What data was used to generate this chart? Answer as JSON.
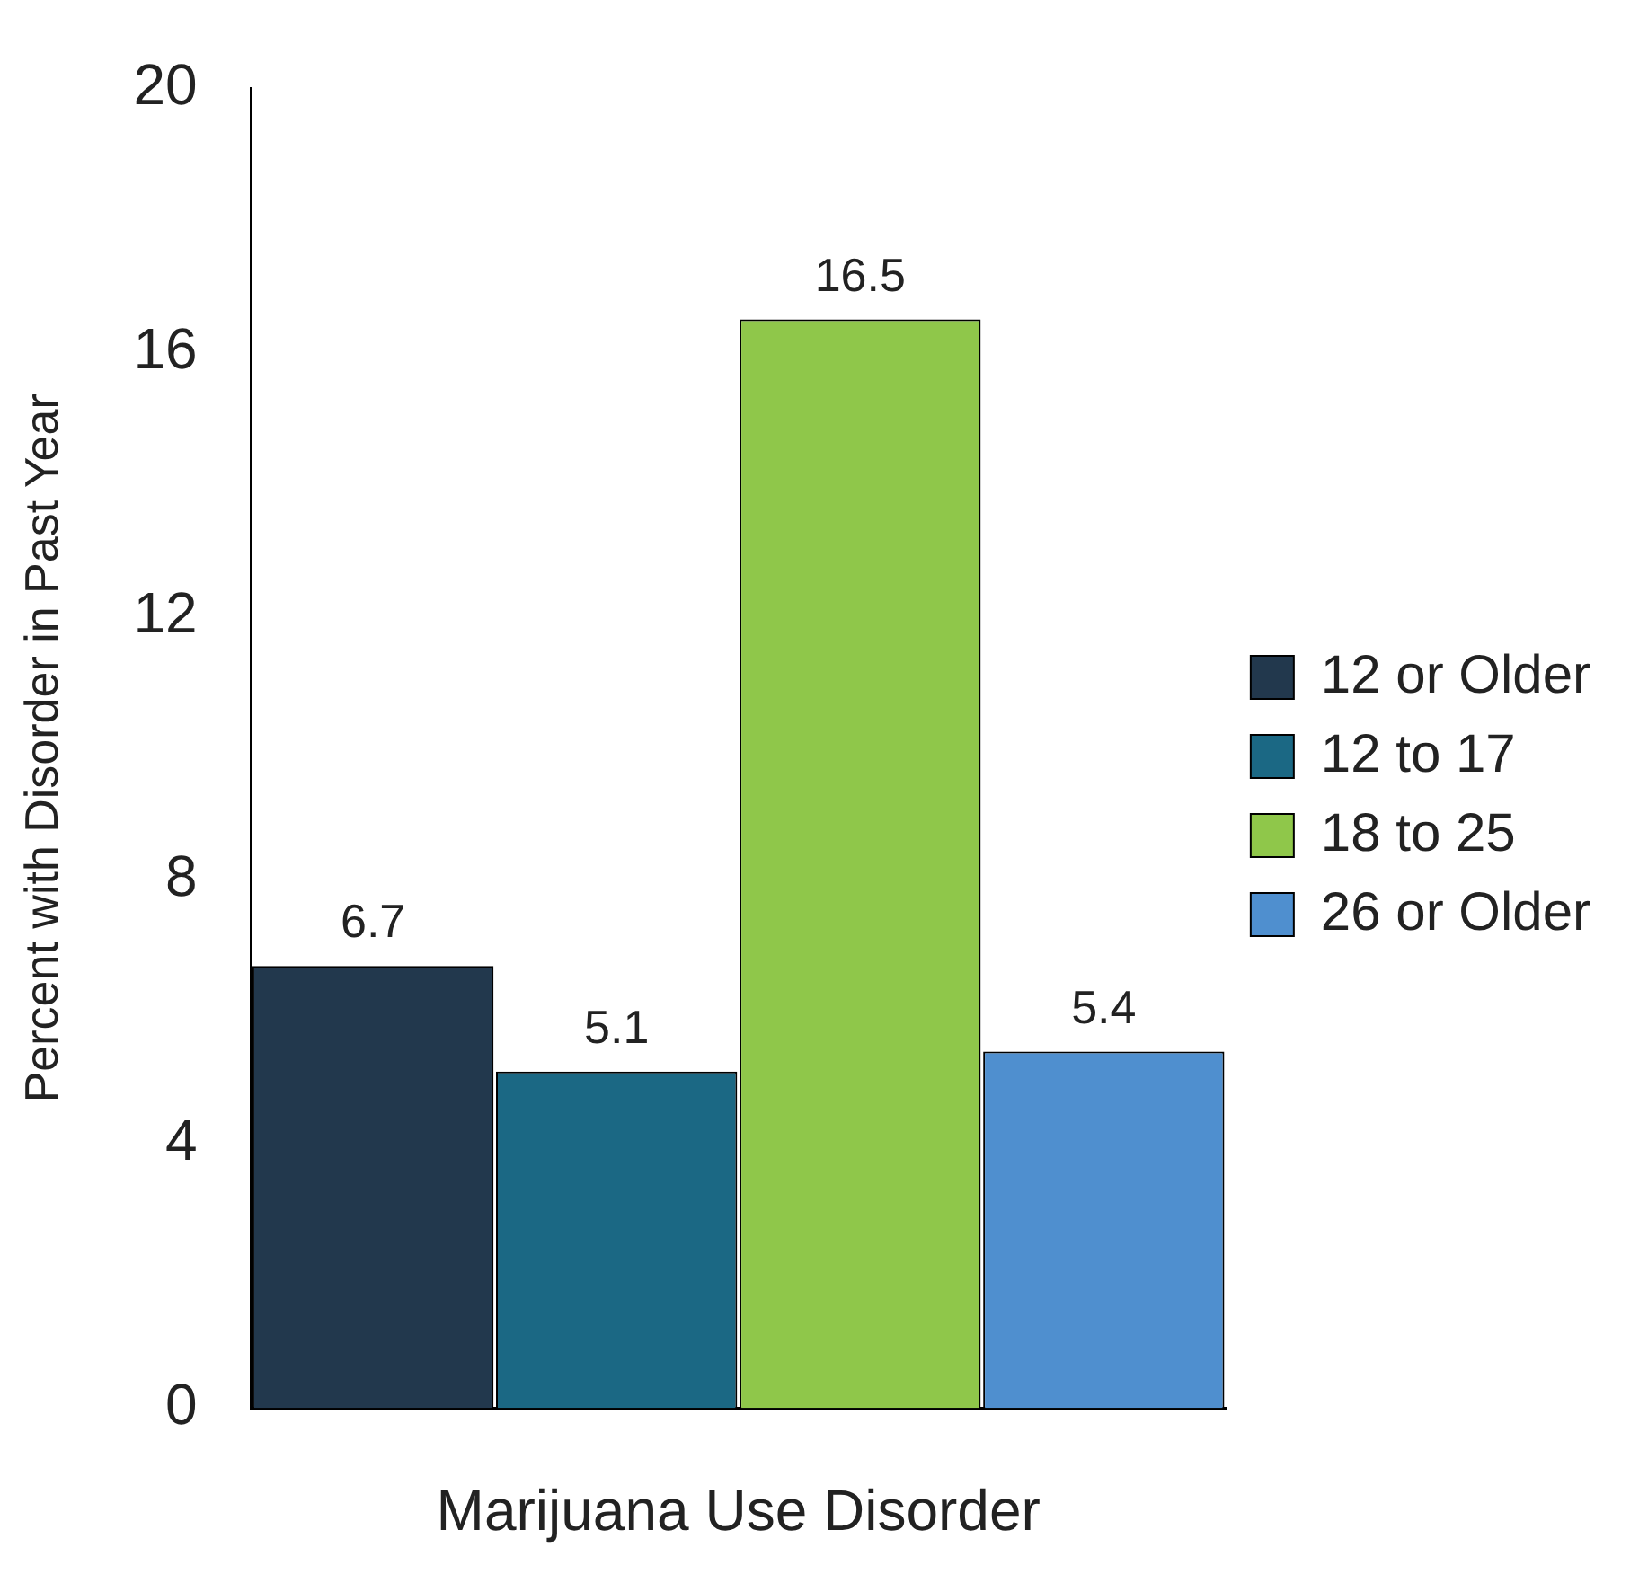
{
  "chart_data": {
    "type": "bar",
    "xlabel": "Marijuana Use Disorder",
    "ylabel": "Percent with Disorder in Past Year",
    "categories": [
      null,
      null,
      null,
      null
    ],
    "series": [
      {
        "name": "12 or Older",
        "color": "#22384d",
        "values": [
          6.7,
          null,
          null,
          null
        ]
      },
      {
        "name": "12 to 17",
        "color": "#1b6884",
        "values": [
          null,
          5.1,
          null,
          null
        ]
      },
      {
        "name": "18 to 25",
        "color": "#8fc74a",
        "values": [
          null,
          null,
          16.5,
          null
        ]
      },
      {
        "name": "26 or Older",
        "color": "#4f8fcf",
        "values": [
          null,
          null,
          null,
          5.4
        ]
      }
    ],
    "ylim": [
      0,
      20
    ],
    "yticks": [
      0,
      4,
      8,
      12,
      16,
      20
    ],
    "grid": false,
    "legend": "right",
    "data_labels": true
  }
}
